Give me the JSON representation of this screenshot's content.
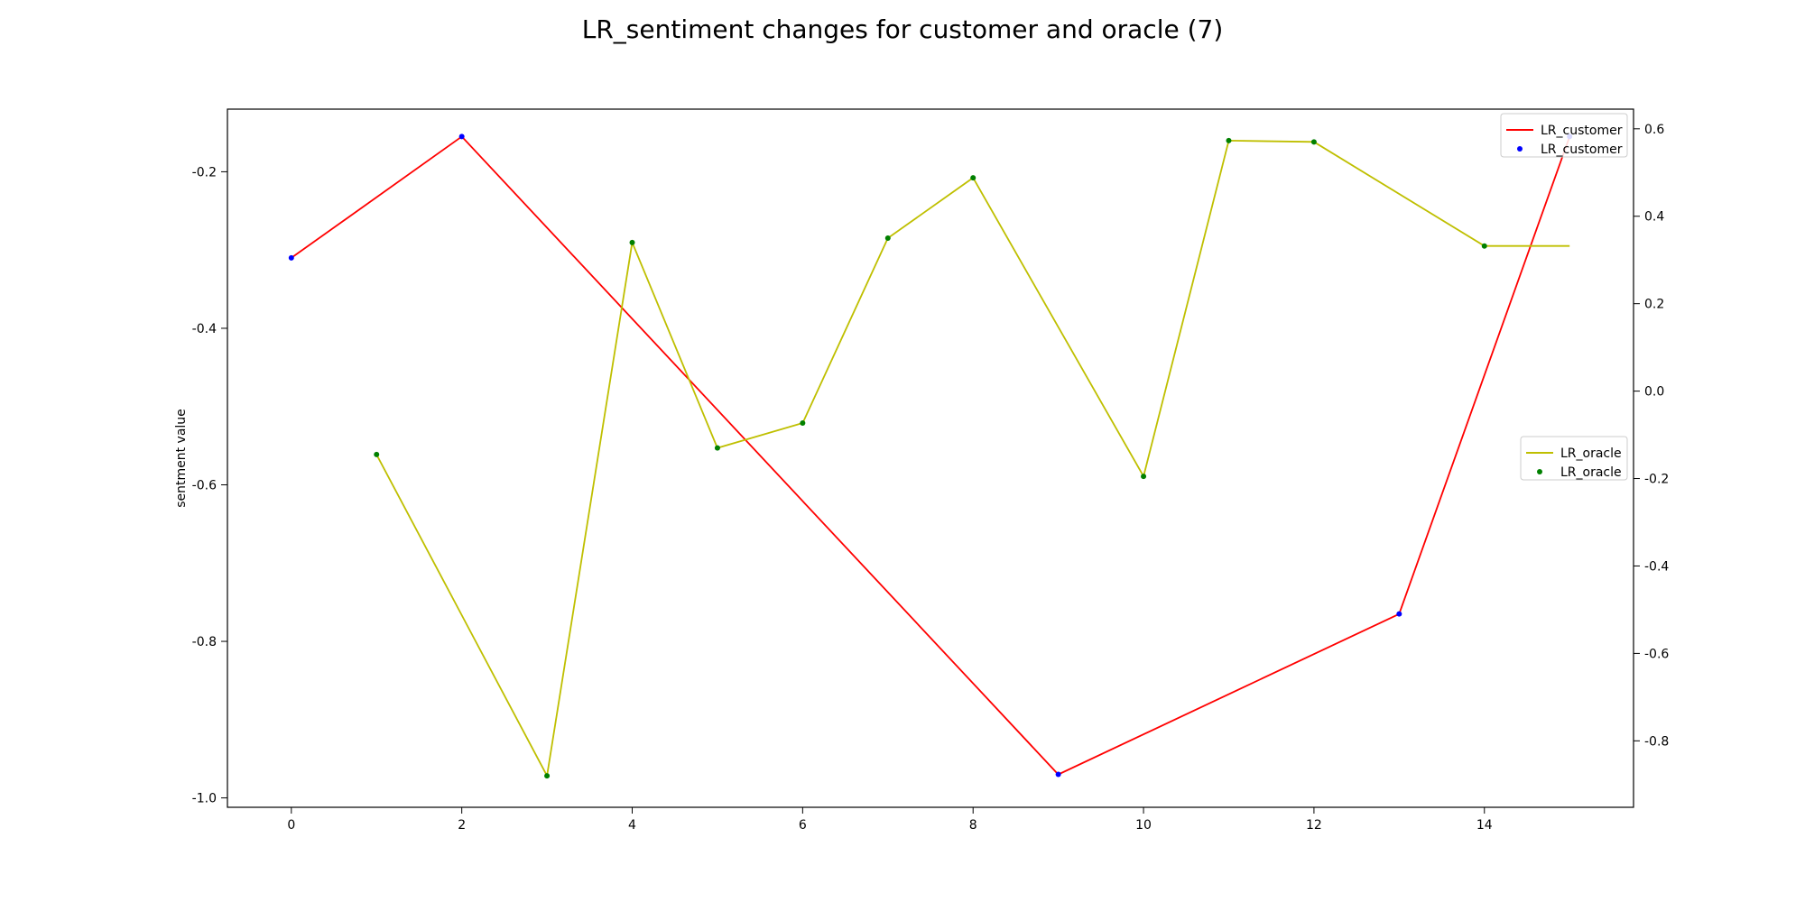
{
  "chart_data": {
    "type": "line",
    "title": "LR_sentiment changes for customer and oracle (7)",
    "xlabel": "",
    "ylabel": "sentment value",
    "xlim": [
      -0.75,
      15.75
    ],
    "x_ticks": [
      0,
      2,
      4,
      6,
      8,
      10,
      12,
      14
    ],
    "y_left": {
      "lim": [
        -1.012,
        -0.12
      ],
      "ticks": [
        -1.0,
        -0.8,
        -0.6,
        -0.4,
        -0.2
      ],
      "tick_labels": [
        "-1.0",
        "-0.8",
        "-0.6",
        "-0.4",
        "-0.2"
      ]
    },
    "y_right": {
      "lim": [
        -0.952,
        0.645
      ],
      "ticks": [
        -0.8,
        -0.6,
        -0.4,
        -0.2,
        0.0,
        0.2,
        0.4,
        0.6
      ],
      "tick_labels": [
        "-0.8",
        "-0.6",
        "-0.4",
        "-0.2",
        "0.0",
        "0.2",
        "0.4",
        "0.6"
      ]
    },
    "grid": false,
    "series": [
      {
        "name": "LR_customer",
        "axis": "left",
        "line_color": "#ff0000",
        "marker_color": "#0000ff",
        "x": [
          0,
          2,
          9,
          13,
          15
        ],
        "y": [
          -0.31,
          -0.155,
          -0.97,
          -0.765,
          -0.155
        ]
      },
      {
        "name": "LR_oracle",
        "axis": "right",
        "line_color": "#bfbf00",
        "marker_color": "#008000",
        "x": [
          1,
          3,
          4,
          5,
          6,
          7,
          8,
          10,
          11,
          12,
          14,
          15
        ],
        "y": [
          -0.145,
          -0.88,
          0.34,
          -0.13,
          -0.073,
          0.35,
          0.488,
          -0.195,
          0.573,
          0.57,
          0.332,
          0.332
        ],
        "marker_count": 11
      }
    ],
    "legends": [
      {
        "placement": "upper-right",
        "series": "LR_customer",
        "entries": [
          "LR_customer",
          "LR_customer"
        ]
      },
      {
        "placement": "center-right",
        "series": "LR_oracle",
        "entries": [
          "LR_oracle",
          "LR_oracle"
        ]
      }
    ]
  }
}
